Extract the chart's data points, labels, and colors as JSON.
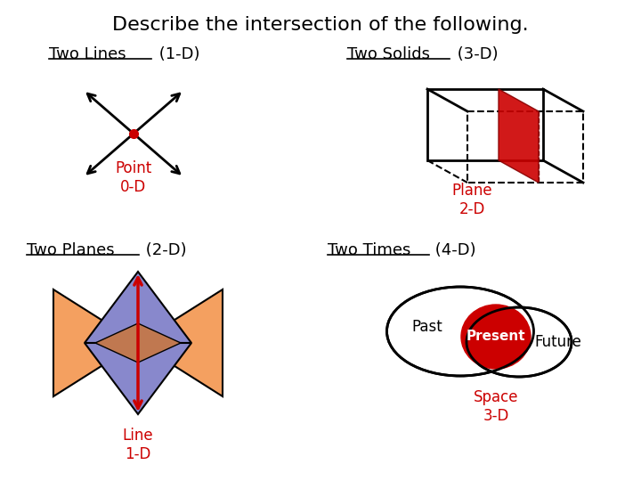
{
  "title": "Describe the intersection of the following.",
  "title_fontsize": 16,
  "bg_color": "#ffffff",
  "label_color_black": "#000000",
  "label_color_red": "#cc0000",
  "point_label": "Point\n0-D",
  "plane_label": "Plane\n2-D",
  "line_label": "Line\n1-D",
  "past_label": "Past",
  "present_label": "Present",
  "future_label": "Future",
  "space_label": "Space\n3-D"
}
